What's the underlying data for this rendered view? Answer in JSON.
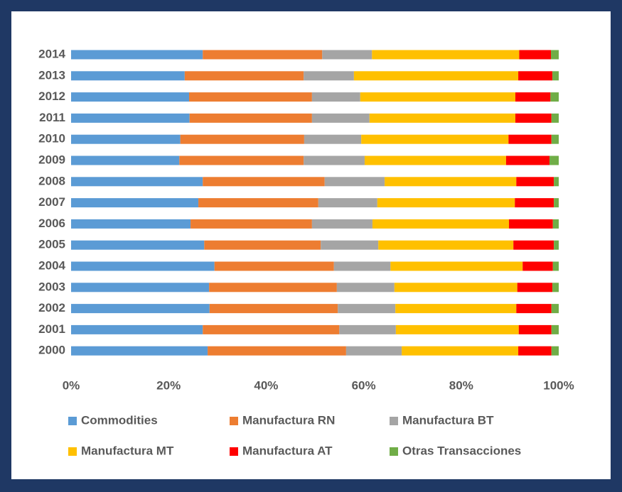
{
  "chart_data": {
    "type": "stacked_barh",
    "categories": [
      "2014",
      "2013",
      "2012",
      "2011",
      "2010",
      "2009",
      "2008",
      "2007",
      "2006",
      "2005",
      "2004",
      "2003",
      "2002",
      "2001",
      "2000"
    ],
    "series": [
      {
        "name": "Commodities",
        "color": "#5b9bd5",
        "values": [
          27.0,
          23.3,
          24.2,
          24.3,
          22.4,
          22.2,
          27.0,
          26.1,
          24.5,
          27.3,
          29.4,
          28.3,
          28.4,
          27.0,
          28.0
        ]
      },
      {
        "name": "Manufactura RN",
        "color": "#ed7d31",
        "values": [
          24.5,
          24.4,
          25.2,
          25.1,
          25.4,
          25.5,
          25.0,
          24.6,
          24.9,
          23.9,
          24.5,
          26.2,
          26.3,
          28.0,
          28.4
        ]
      },
      {
        "name": "Manufactura BT",
        "color": "#a5a5a5",
        "values": [
          10.2,
          10.3,
          9.9,
          11.8,
          11.7,
          12.5,
          12.3,
          12.1,
          12.4,
          11.8,
          11.6,
          11.8,
          11.8,
          11.6,
          11.4
        ]
      },
      {
        "name": "Manufactura MT",
        "color": "#ffc000",
        "values": [
          30.2,
          33.7,
          31.8,
          29.9,
          30.2,
          29.0,
          27.0,
          28.2,
          28.0,
          27.7,
          27.1,
          25.2,
          24.8,
          25.2,
          23.9
        ]
      },
      {
        "name": "Manufactura AT",
        "color": "#ff0000",
        "values": [
          6.5,
          7.0,
          7.2,
          7.4,
          8.8,
          8.9,
          7.7,
          8.0,
          9.0,
          8.3,
          6.2,
          7.2,
          7.2,
          6.7,
          6.8
        ]
      },
      {
        "name": "Otras Transacciones",
        "color": "#70ad47",
        "values": [
          1.6,
          1.3,
          1.7,
          1.5,
          1.5,
          1.9,
          1.0,
          1.0,
          1.2,
          1.0,
          1.2,
          1.3,
          1.5,
          1.5,
          1.5
        ]
      }
    ],
    "xlim": [
      0,
      100
    ],
    "xticks": [
      {
        "value": 0,
        "label": "0%"
      },
      {
        "value": 20,
        "label": "20%"
      },
      {
        "value": 40,
        "label": "40%"
      },
      {
        "value": 60,
        "label": "60%"
      },
      {
        "value": 80,
        "label": "80%"
      },
      {
        "value": 100,
        "label": "100%"
      }
    ],
    "legend": "bottom"
  }
}
